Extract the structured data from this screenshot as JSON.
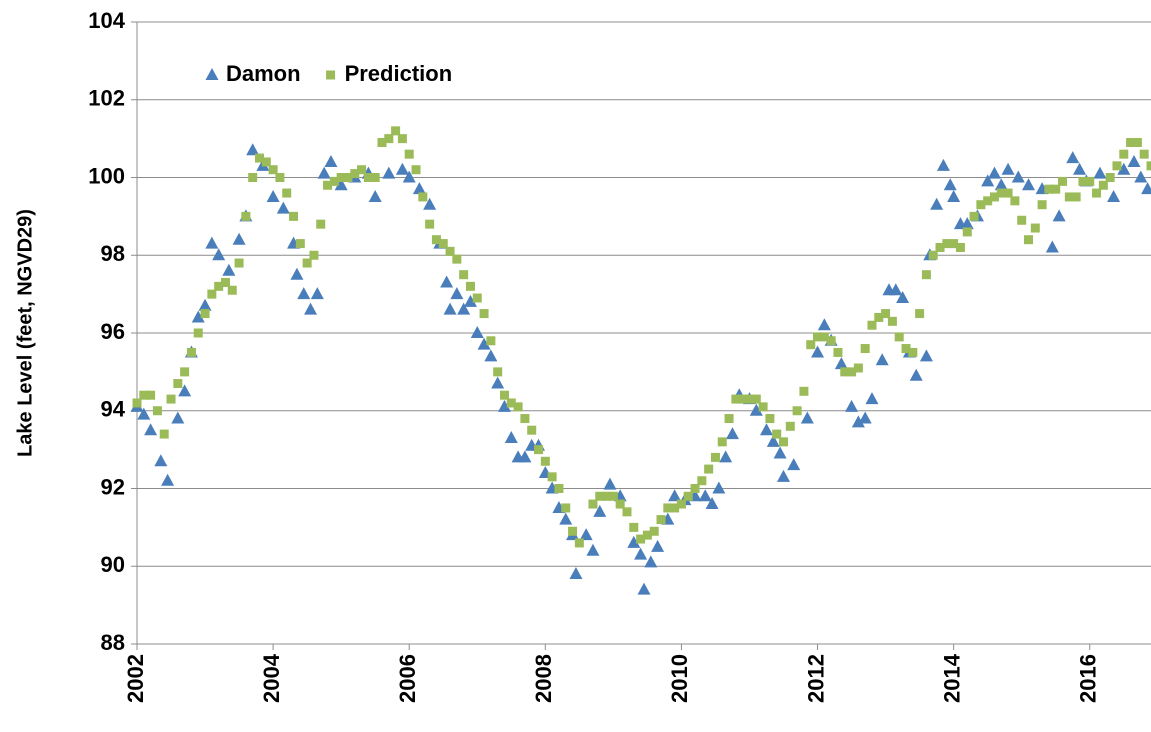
{
  "chart_data": {
    "type": "scatter",
    "y_label": "Lake Level (feet, NGVD29)",
    "xlim": [
      2002,
      2016.9
    ],
    "xticks": [
      2002,
      2004,
      2006,
      2008,
      2010,
      2012,
      2014,
      2016
    ],
    "ylim": [
      88,
      104
    ],
    "yticks": [
      88,
      90,
      92,
      94,
      96,
      98,
      100,
      102,
      104
    ],
    "grid": true,
    "legend": "upper left",
    "series": [
      {
        "name": "Damon",
        "color": "#4a7ebb",
        "marker": "triangle",
        "x": [
          2002.0,
          2002.1,
          2002.2,
          2002.35,
          2002.45,
          2002.6,
          2002.7,
          2002.8,
          2002.9,
          2003.0,
          2003.1,
          2003.2,
          2003.35,
          2003.5,
          2003.6,
          2003.7,
          2003.85,
          2004.0,
          2004.15,
          2004.3,
          2004.35,
          2004.45,
          2004.55,
          2004.65,
          2004.75,
          2004.85,
          2005.0,
          2005.2,
          2005.4,
          2005.5,
          2005.7,
          2005.9,
          2006.0,
          2006.15,
          2006.3,
          2006.45,
          2006.55,
          2006.6,
          2006.7,
          2006.8,
          2006.9,
          2007.0,
          2007.1,
          2007.2,
          2007.3,
          2007.4,
          2007.5,
          2007.6,
          2007.7,
          2007.8,
          2007.9,
          2008.0,
          2008.1,
          2008.2,
          2008.3,
          2008.4,
          2008.45,
          2008.6,
          2008.7,
          2008.8,
          2008.95,
          2009.1,
          2009.3,
          2009.4,
          2009.45,
          2009.55,
          2009.65,
          2009.8,
          2009.9,
          2010.05,
          2010.2,
          2010.35,
          2010.45,
          2010.55,
          2010.65,
          2010.75,
          2010.85,
          2011.0,
          2011.1,
          2011.25,
          2011.35,
          2011.45,
          2011.5,
          2011.65,
          2011.85,
          2012.0,
          2012.1,
          2012.2,
          2012.35,
          2012.5,
          2012.6,
          2012.7,
          2012.8,
          2012.95,
          2013.05,
          2013.15,
          2013.25,
          2013.35,
          2013.45,
          2013.6,
          2013.65,
          2013.75,
          2013.85,
          2013.95,
          2014.0,
          2014.1,
          2014.2,
          2014.35,
          2014.5,
          2014.6,
          2014.7,
          2014.8,
          2014.95,
          2015.1,
          2015.3,
          2015.45,
          2015.55,
          2015.75,
          2015.85,
          2015.95,
          2016.15,
          2016.35,
          2016.5,
          2016.65,
          2016.75,
          2016.85
        ],
        "values": [
          94.1,
          93.9,
          93.5,
          92.7,
          92.2,
          93.8,
          94.5,
          95.5,
          96.4,
          96.7,
          98.3,
          98.0,
          97.6,
          98.4,
          99.0,
          100.7,
          100.3,
          99.5,
          99.2,
          98.3,
          97.5,
          97.0,
          96.6,
          97.0,
          100.1,
          100.4,
          99.8,
          100.0,
          100.1,
          99.5,
          100.1,
          100.2,
          100.0,
          99.7,
          99.3,
          98.3,
          97.3,
          96.6,
          97.0,
          96.6,
          96.8,
          96.0,
          95.7,
          95.4,
          94.7,
          94.1,
          93.3,
          92.8,
          92.8,
          93.1,
          93.1,
          92.4,
          92.0,
          91.5,
          91.2,
          90.8,
          89.8,
          90.8,
          90.4,
          91.4,
          92.1,
          91.8,
          90.6,
          90.3,
          89.4,
          90.1,
          90.5,
          91.2,
          91.8,
          91.7,
          91.8,
          91.8,
          91.6,
          92.0,
          92.8,
          93.4,
          94.4,
          94.3,
          94.0,
          93.5,
          93.2,
          92.9,
          92.3,
          92.6,
          93.8,
          95.5,
          96.2,
          95.8,
          95.2,
          94.1,
          93.7,
          93.8,
          94.3,
          95.3,
          97.1,
          97.1,
          96.9,
          95.5,
          94.9,
          95.4,
          98.0,
          99.3,
          100.3,
          99.8,
          99.5,
          98.8,
          98.8,
          99.0,
          99.9,
          100.1,
          99.8,
          100.2,
          100.0,
          99.8,
          99.7,
          98.2,
          99.0,
          100.5,
          100.2,
          99.9,
          100.1,
          99.5,
          100.2,
          100.4,
          100.0,
          99.7
        ]
      },
      {
        "name": "Prediction",
        "color": "#9bbb59",
        "marker": "square",
        "x": [
          2002.0,
          2002.1,
          2002.2,
          2002.3,
          2002.4,
          2002.5,
          2002.6,
          2002.7,
          2002.8,
          2002.9,
          2003.0,
          2003.1,
          2003.2,
          2003.3,
          2003.4,
          2003.5,
          2003.6,
          2003.7,
          2003.8,
          2003.9,
          2004.0,
          2004.1,
          2004.2,
          2004.3,
          2004.4,
          2004.5,
          2004.6,
          2004.7,
          2004.8,
          2004.9,
          2005.0,
          2005.1,
          2005.2,
          2005.3,
          2005.4,
          2005.5,
          2005.6,
          2005.7,
          2005.8,
          2005.9,
          2006.0,
          2006.1,
          2006.2,
          2006.3,
          2006.4,
          2006.5,
          2006.6,
          2006.7,
          2006.8,
          2006.9,
          2007.0,
          2007.1,
          2007.2,
          2007.3,
          2007.4,
          2007.5,
          2007.6,
          2007.7,
          2007.8,
          2007.9,
          2008.0,
          2008.1,
          2008.2,
          2008.3,
          2008.4,
          2008.5,
          2008.6,
          2008.7,
          2008.8,
          2008.9,
          2009.0,
          2009.1,
          2009.2,
          2009.3,
          2009.4,
          2009.5,
          2009.6,
          2009.7,
          2009.8,
          2009.9,
          2010.0,
          2010.1,
          2010.2,
          2010.3,
          2010.4,
          2010.5,
          2010.6,
          2010.7,
          2010.8,
          2010.9,
          2011.0,
          2011.1,
          2011.2,
          2011.3,
          2011.4,
          2011.5,
          2011.6,
          2011.7,
          2011.8,
          2011.9,
          2012.0,
          2012.1,
          2012.2,
          2012.3,
          2012.4,
          2012.5,
          2012.6,
          2012.7,
          2012.8,
          2012.9,
          2013.0,
          2013.1,
          2013.2,
          2013.3,
          2013.4,
          2013.5,
          2013.6,
          2013.7,
          2013.8,
          2013.9,
          2014.0,
          2014.1,
          2014.2,
          2014.3,
          2014.4,
          2014.5,
          2014.6,
          2014.7,
          2014.8,
          2014.9,
          2015.0,
          2015.1,
          2015.2,
          2015.3,
          2015.4,
          2015.5,
          2015.6,
          2015.7,
          2015.8,
          2015.9,
          2016.0,
          2016.1,
          2016.2,
          2016.3,
          2016.4,
          2016.5,
          2016.6,
          2016.7,
          2016.8,
          2016.9
        ],
        "values": [
          94.2,
          94.4,
          94.4,
          94.0,
          93.4,
          94.3,
          94.7,
          95.0,
          95.5,
          96.0,
          96.5,
          97.0,
          97.2,
          97.3,
          97.1,
          97.8,
          99.0,
          100.0,
          100.5,
          100.4,
          100.2,
          100.0,
          99.6,
          99.0,
          98.3,
          97.8,
          98.0,
          98.8,
          99.8,
          99.9,
          100.0,
          100.0,
          100.1,
          100.2,
          100.0,
          100.0,
          100.9,
          101.0,
          101.2,
          101.0,
          100.6,
          100.2,
          99.5,
          98.8,
          98.4,
          98.3,
          98.1,
          97.9,
          97.5,
          97.2,
          96.9,
          96.5,
          95.8,
          95.0,
          94.4,
          94.2,
          94.1,
          93.8,
          93.5,
          93.0,
          92.7,
          92.3,
          92.0,
          91.5,
          90.9,
          90.6,
          null,
          91.6,
          91.8,
          91.8,
          91.8,
          91.6,
          91.4,
          91.0,
          90.7,
          90.8,
          90.9,
          91.2,
          91.5,
          91.5,
          91.6,
          91.8,
          92.0,
          92.2,
          92.5,
          92.8,
          93.2,
          93.8,
          94.3,
          94.3,
          94.3,
          94.3,
          94.1,
          93.8,
          93.4,
          93.2,
          93.6,
          94.0,
          94.5,
          95.7,
          95.9,
          95.9,
          95.8,
          95.5,
          95.0,
          95.0,
          95.1,
          95.6,
          96.2,
          96.4,
          96.5,
          96.3,
          95.9,
          95.6,
          95.5,
          96.5,
          97.5,
          98.0,
          98.2,
          98.3,
          98.3,
          98.2,
          98.6,
          99.0,
          99.3,
          99.4,
          99.5,
          99.6,
          99.6,
          99.4,
          98.9,
          98.4,
          98.7,
          99.3,
          99.7,
          99.7,
          99.9,
          99.5,
          99.5,
          99.9,
          99.9,
          99.6,
          99.8,
          100.0,
          100.3,
          100.6,
          100.9,
          100.9,
          100.6,
          100.3
        ]
      }
    ]
  }
}
